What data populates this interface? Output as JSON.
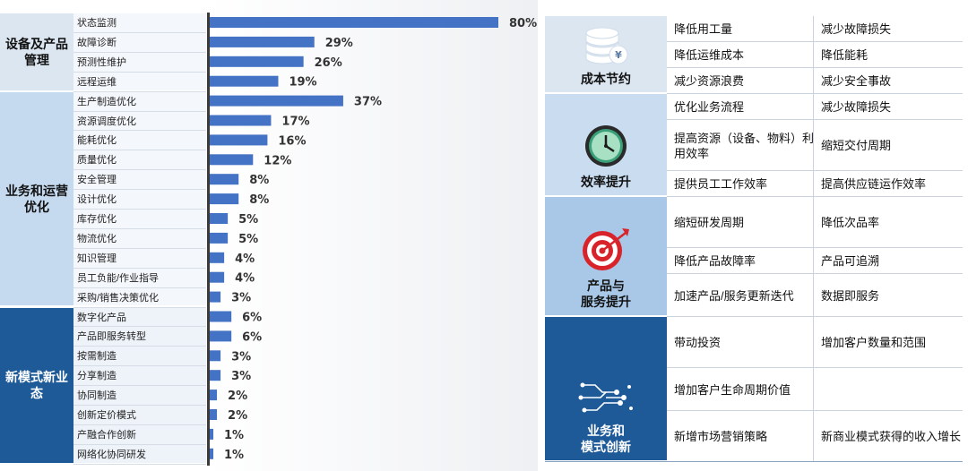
{
  "chart_data": {
    "type": "bar",
    "orientation": "horizontal",
    "groups": [
      {
        "name": "设备及产品管理",
        "categories": [
          "状态监测",
          "故障诊断",
          "预测性维护",
          "远程运维"
        ],
        "values": [
          80,
          29,
          26,
          19
        ]
      },
      {
        "name": "业务和运营优化",
        "categories": [
          "生产制造优化",
          "资源调度优化",
          "能耗优化",
          "质量优化",
          "安全管理",
          "设计优化",
          "库存优化",
          "物流优化",
          "知识管理",
          "员工负能/作业指导",
          "采购/销售决策优化"
        ],
        "values": [
          37,
          17,
          16,
          12,
          8,
          8,
          5,
          5,
          4,
          4,
          3
        ]
      },
      {
        "name": "新模式新业态",
        "categories": [
          "数字化产品",
          "产品即服务转型",
          "按需制造",
          "分享制造",
          "协同制造",
          "创新定价模式",
          "产融合作创新",
          "网络化协同研发"
        ],
        "values": [
          6,
          6,
          3,
          3,
          2,
          2,
          1,
          1
        ]
      }
    ],
    "value_suffix": "%",
    "xlim": [
      0,
      80
    ],
    "bar_color": "#4472c4",
    "group_colors": [
      "#dce6f1",
      "#c5d9ef",
      "#1f5a98"
    ]
  },
  "table": {
    "sections": [
      {
        "name": "成本节约",
        "icon": "coins-stack-icon",
        "bg": "#dce6f1",
        "rows": [
          [
            "降低用工量",
            "减少故障损失"
          ],
          [
            "降低运维成本",
            "降低能耗"
          ],
          [
            "减少资源浪费",
            "减少安全事故"
          ]
        ]
      },
      {
        "name": "效率提升",
        "icon": "clock-icon",
        "bg": "#c9dcf0",
        "rows": [
          [
            "优化业务流程",
            "减少故障损失"
          ],
          [
            "提高资源（设备、物料）利用效率",
            "缩短交付周期"
          ],
          [
            "提供员工工作效率",
            "提高供应链运作效率"
          ]
        ]
      },
      {
        "name": "产品与\n服务提升",
        "icon": "target-icon",
        "bg": "#a9c8e8",
        "rows": [
          [
            "缩短研发周期",
            "降低次品率"
          ],
          [
            "降低产品故障率",
            "产品可追溯"
          ],
          [
            "加速产品/服务更新迭代",
            "数据即服务"
          ]
        ]
      },
      {
        "name": "业务和\n模式创新",
        "icon": "network-nodes-icon",
        "bg": "#1f5a98",
        "rows": [
          [
            "带动投资",
            "增加客户数量和范围"
          ],
          [
            "增加客户生命周期价值",
            ""
          ],
          [
            "新增市场营销策略",
            "新商业模式获得的收入增长"
          ]
        ]
      }
    ]
  }
}
